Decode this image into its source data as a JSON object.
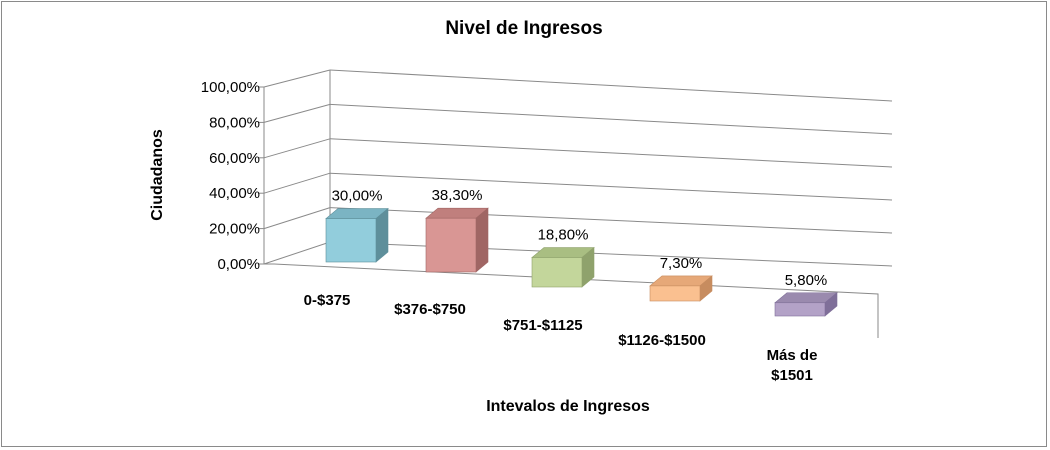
{
  "chart_data": {
    "type": "bar",
    "title": "Nivel de Ingresos",
    "xlabel": "Intevalos de Ingresos",
    "ylabel": "Ciudadanos",
    "categories": [
      "0-$375",
      "$376-$750",
      "$751-$1125",
      "$1126-$1500",
      "Más de $1501"
    ],
    "values": [
      30.0,
      38.3,
      18.8,
      7.3,
      5.8
    ],
    "data_labels": [
      "30,00%",
      "38,30%",
      "18,80%",
      "7,30%",
      "5,80%"
    ],
    "ylim": [
      0,
      100
    ],
    "y_ticks": [
      "0,00%",
      "20,00%",
      "40,00%",
      "60,00%",
      "80,00%",
      "100,00%"
    ],
    "grid": true,
    "legend": "none",
    "style": "3D perspective bars",
    "colors": [
      "#92CDDC",
      "#D99694",
      "#C3D69B",
      "#FAC090",
      "#B3A2C7"
    ],
    "side_colors": [
      "#5E8F9B",
      "#A06664",
      "#8FA26C",
      "#C78C5F",
      "#7F6F99"
    ],
    "top_colors": [
      "#7BB4C3",
      "#C07F7D",
      "#A9BE82",
      "#E6A878",
      "#9A8AAE"
    ]
  }
}
